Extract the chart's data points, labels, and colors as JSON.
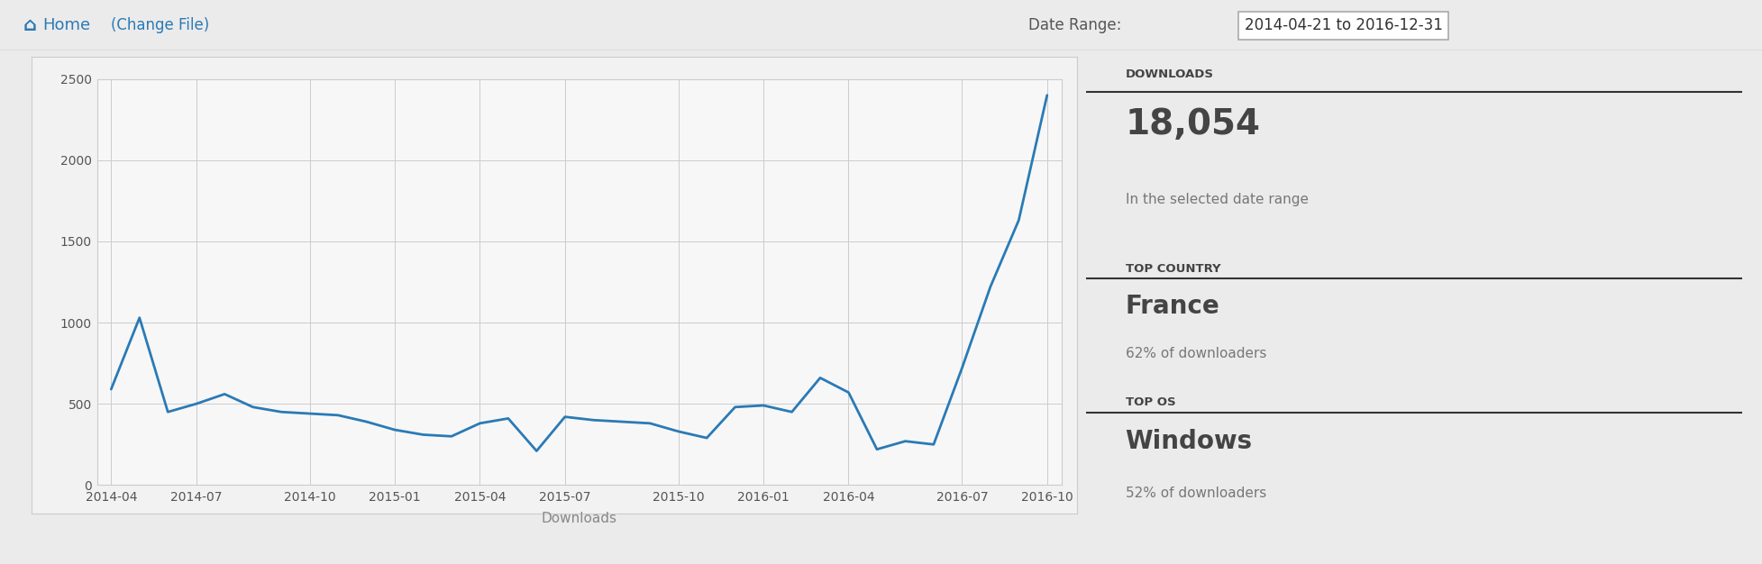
{
  "x_labels": [
    "2014-04",
    "2014-07",
    "2014-10",
    "2015-01",
    "2015-04",
    "2015-07",
    "2015-10",
    "2016-01",
    "2016-04",
    "2016-07",
    "2016-10"
  ],
  "data_y": [
    590,
    1030,
    450,
    500,
    560,
    480,
    450,
    440,
    430,
    390,
    340,
    310,
    300,
    380,
    410,
    210,
    420,
    400,
    390,
    380,
    330,
    290,
    480,
    490,
    450,
    660,
    570,
    220,
    270,
    250,
    720,
    1220,
    1630,
    2400
  ],
  "line_color": "#2a7ab5",
  "line_width": 2.0,
  "ylim": [
    0,
    2500
  ],
  "yticks": [
    0,
    500,
    1000,
    1500,
    2000,
    2500
  ],
  "xlabel": "Downloads",
  "xlabel_color": "#888888",
  "background_chart": "#f7f7f7",
  "background_page": "#ebebeb",
  "grid_color": "#cccccc",
  "tick_label_color": "#555555",
  "spine_color": "#cccccc",
  "header_text_home": "Home",
  "header_text_change": "(Change File)",
  "header_text_home_color": "#2a7ab5",
  "header_text_change_color": "#2a7ab5",
  "date_range_label": "Date Range:",
  "date_range_value": "2014-04-21 to 2016-12-31",
  "stats_downloads_label": "DOWNLOADS",
  "stats_downloads_value": "18,054",
  "stats_downloads_sub": "In the selected date range",
  "stats_country_label": "TOP COUNTRY",
  "stats_country_value": "France",
  "stats_country_sub": "62% of downloaders",
  "stats_os_label": "TOP OS",
  "stats_os_value": "Windows",
  "stats_os_sub": "52% of downloaders"
}
